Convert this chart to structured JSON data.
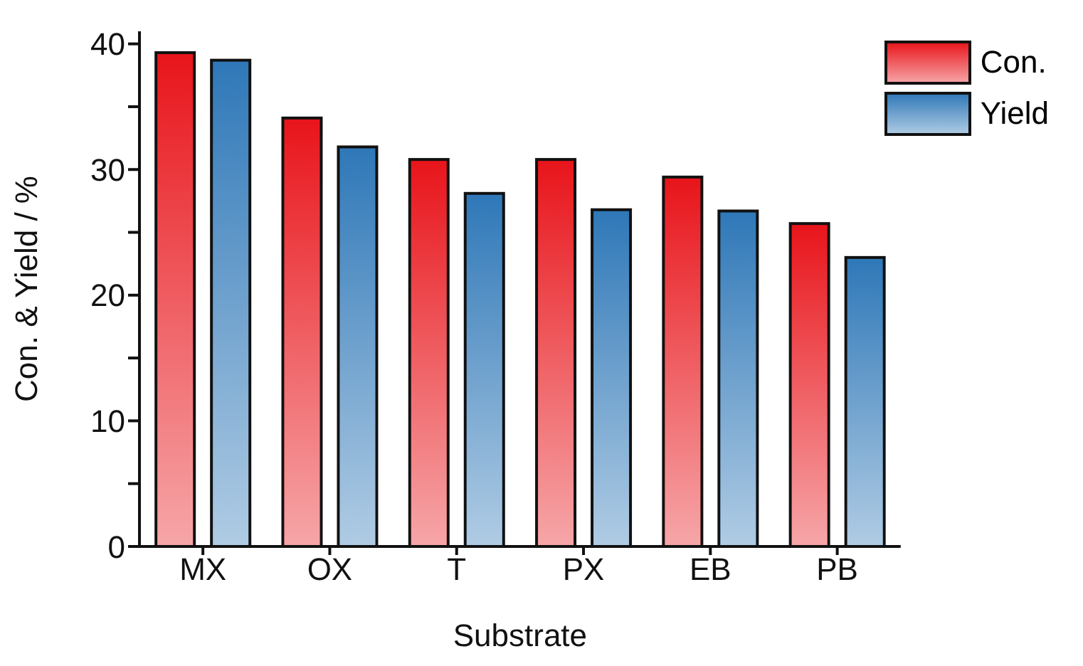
{
  "chart_data": {
    "type": "bar",
    "xlabel": "Substrate",
    "ylabel": "Con. & Yield / %",
    "categories": [
      "MX",
      "OX",
      "T",
      "PX",
      "EB",
      "PB"
    ],
    "series": [
      {
        "name": "Con.",
        "color": "#e8151b",
        "values": [
          39.3,
          34.1,
          30.8,
          30.8,
          29.4,
          25.7
        ]
      },
      {
        "name": "Yield",
        "color": "#2f78b8",
        "values": [
          38.7,
          31.8,
          28.1,
          26.8,
          26.7,
          23.0
        ]
      }
    ],
    "ylim": [
      0,
      41
    ],
    "yticks": [
      0,
      {
        "value": 5,
        "label": null
      },
      10,
      {
        "value": 15,
        "label": null
      },
      20,
      {
        "value": 25,
        "label": null
      },
      30,
      {
        "value": 35,
        "label": null
      },
      40
    ],
    "grid": false,
    "legend": "top right"
  }
}
